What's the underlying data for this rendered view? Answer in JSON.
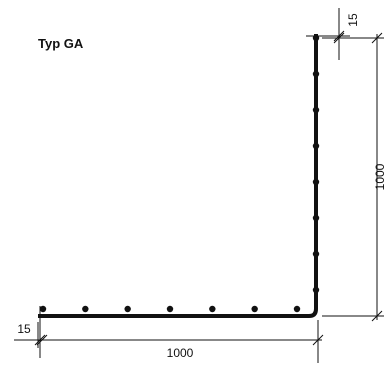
{
  "title": "Typ GA",
  "dimensions": {
    "vertical_height": "1000",
    "horizontal_length": "1000",
    "cover_top": "15",
    "cover_left": "15"
  },
  "rebar": {
    "vertical_count": 8,
    "horizontal_count": 7
  }
}
